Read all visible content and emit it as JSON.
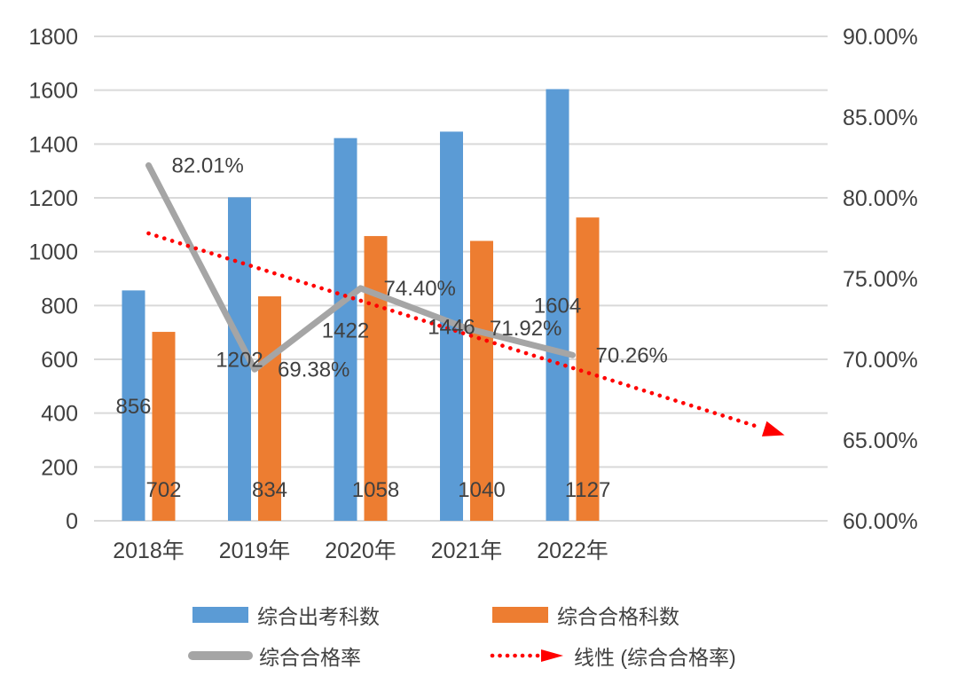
{
  "chart_data": {
    "type": "combo",
    "categories": [
      "2018年",
      "2019年",
      "2020年",
      "2021年",
      "2022年"
    ],
    "series": [
      {
        "name": "综合出考科数",
        "type": "bar",
        "color": "#5B9BD5",
        "values": [
          856,
          1202,
          1422,
          1446,
          1604
        ],
        "labels": [
          "856",
          "1202",
          "1422",
          "1446",
          "1604"
        ],
        "label_position": "inside-middle"
      },
      {
        "name": "综合合格科数",
        "type": "bar",
        "color": "#ED7D31",
        "values": [
          702,
          834,
          1058,
          1040,
          1127
        ],
        "labels": [
          "702",
          "834",
          "1058",
          "1040",
          "1127"
        ],
        "label_position": "inside-base"
      },
      {
        "name": "综合合格率",
        "type": "line",
        "color": "#A5A5A5",
        "axis": "right",
        "values": [
          82.01,
          69.38,
          74.4,
          71.92,
          70.26
        ],
        "labels": [
          "82.01%",
          "69.38%",
          "74.40%",
          "71.92%",
          "70.26%"
        ]
      },
      {
        "name": "线性 (综合合格率)",
        "type": "trendline",
        "style": "dotted-arrow",
        "color": "#FF0000",
        "axis": "right",
        "start_pct": 77.8,
        "end_pct": 65.3,
        "start_index": 0,
        "end_index": 6
      }
    ],
    "left_axis": {
      "min": 0,
      "max": 1800,
      "ticks": [
        "1800",
        "1600",
        "1400",
        "1200",
        "1000",
        "800",
        "600",
        "400",
        "200",
        "0"
      ]
    },
    "right_axis": {
      "min": 60,
      "max": 90,
      "ticks": [
        "90.00%",
        "85.00%",
        "80.00%",
        "75.00%",
        "70.00%",
        "65.00%",
        "60.00%"
      ]
    },
    "legend": {
      "position": "bottom",
      "entries": [
        "综合出考科数",
        "综合合格科数",
        "综合合格率",
        "线性 (综合合格率)"
      ]
    },
    "colors": {
      "grid": "#D9D9D9",
      "text": "#404040"
    },
    "grid": "horizontal-on"
  }
}
